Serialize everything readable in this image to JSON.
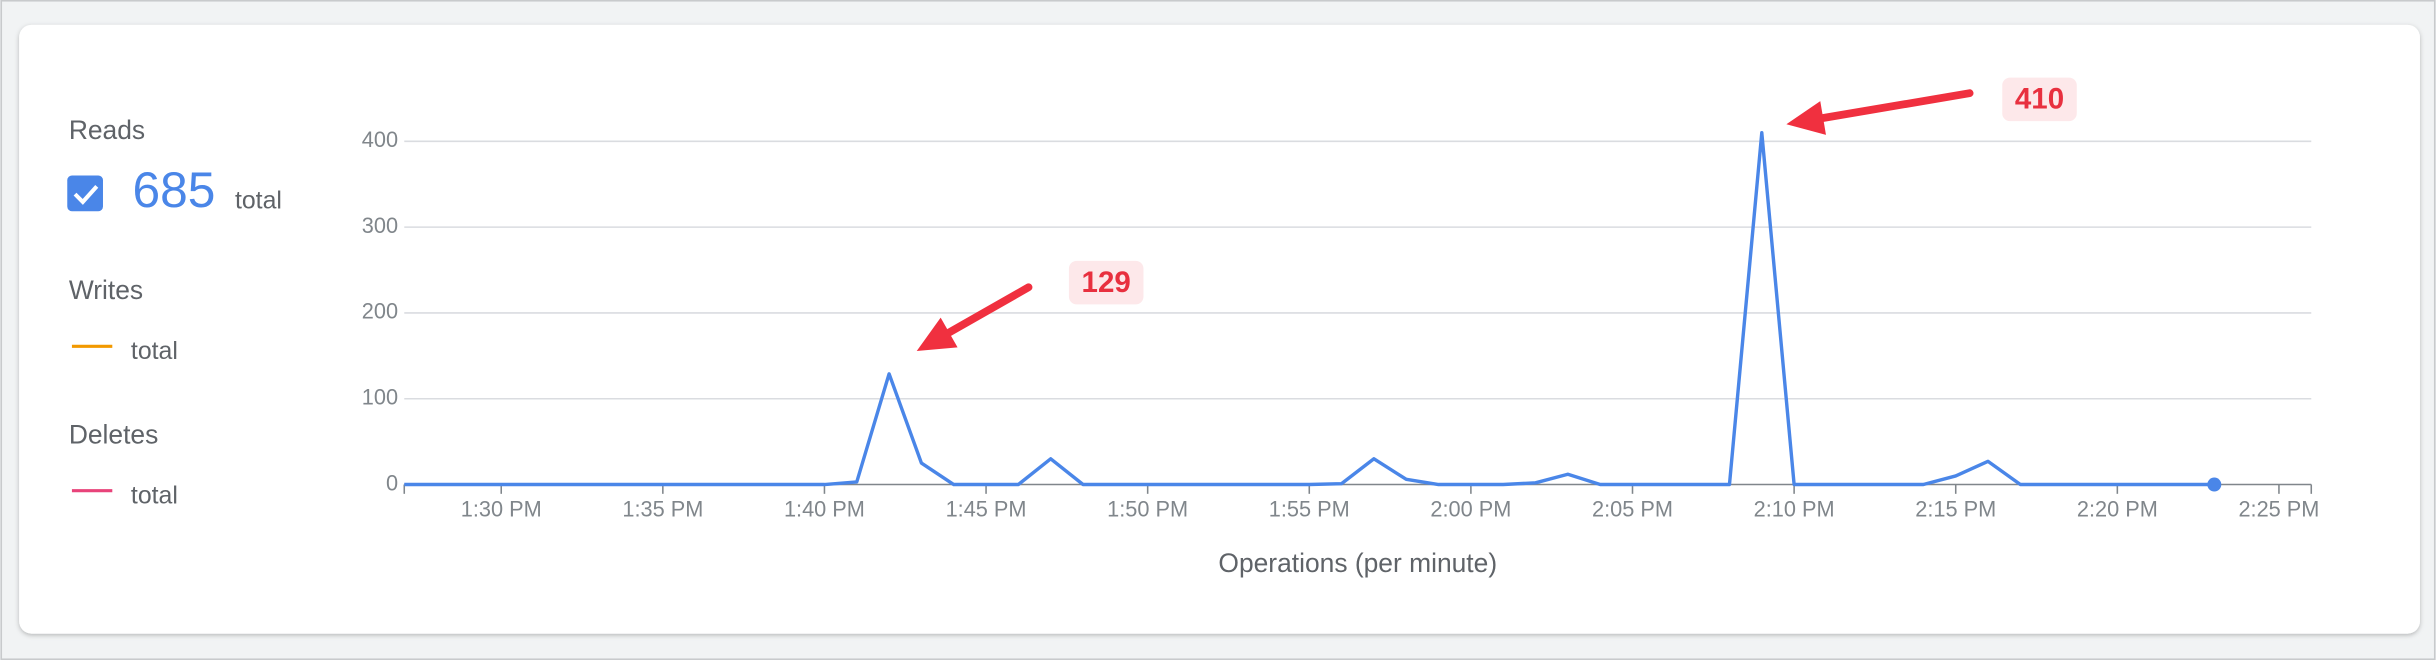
{
  "chart_data": {
    "type": "line",
    "xlabel": "Operations (per minute)",
    "x": [
      "1:27 PM",
      "1:28 PM",
      "1:29 PM",
      "1:30 PM",
      "1:31 PM",
      "1:32 PM",
      "1:33 PM",
      "1:34 PM",
      "1:35 PM",
      "1:36 PM",
      "1:37 PM",
      "1:38 PM",
      "1:39 PM",
      "1:40 PM",
      "1:41 PM",
      "1:42 PM",
      "1:43 PM",
      "1:44 PM",
      "1:45 PM",
      "1:46 PM",
      "1:47 PM",
      "1:48 PM",
      "1:49 PM",
      "1:50 PM",
      "1:51 PM",
      "1:52 PM",
      "1:53 PM",
      "1:54 PM",
      "1:55 PM",
      "1:56 PM",
      "1:57 PM",
      "1:58 PM",
      "1:59 PM",
      "2:00 PM",
      "2:01 PM",
      "2:02 PM",
      "2:03 PM",
      "2:04 PM",
      "2:05 PM",
      "2:06 PM",
      "2:07 PM",
      "2:08 PM",
      "2:09 PM",
      "2:10 PM",
      "2:11 PM",
      "2:12 PM",
      "2:13 PM",
      "2:14 PM",
      "2:15 PM",
      "2:16 PM",
      "2:17 PM",
      "2:18 PM",
      "2:19 PM",
      "2:20 PM",
      "2:21 PM",
      "2:22 PM",
      "2:23 PM"
    ],
    "series": [
      {
        "name": "Reads",
        "color": "#4a86e8",
        "values": [
          0,
          0,
          0,
          0,
          0,
          0,
          0,
          0,
          0,
          0,
          0,
          0,
          0,
          0,
          3,
          129,
          25,
          0,
          0,
          0,
          30,
          0,
          0,
          0,
          0,
          0,
          0,
          0,
          0,
          1,
          30,
          6,
          0,
          0,
          0,
          2,
          12,
          0,
          0,
          0,
          0,
          0,
          410,
          0,
          0,
          0,
          0,
          0,
          10,
          27,
          0,
          0,
          0,
          0,
          0,
          0,
          0
        ]
      }
    ],
    "xlim": [
      "1:27 PM",
      "2:26 PM"
    ],
    "xticks": [
      "1:30 PM",
      "1:35 PM",
      "1:40 PM",
      "1:45 PM",
      "1:50 PM",
      "1:55 PM",
      "2:00 PM",
      "2:05 PM",
      "2:10 PM",
      "2:15 PM",
      "2:20 PM",
      "2:25 PM"
    ],
    "ylim": [
      0,
      400
    ],
    "yticks": [
      0,
      100,
      200,
      300,
      400
    ],
    "grid": true,
    "legend": [
      {
        "name": "Reads",
        "total": 685,
        "unit": "total",
        "color": "#4a86e8"
      },
      {
        "name": "Writes",
        "unit": "total",
        "color": "#f29900"
      },
      {
        "name": "Deletes",
        "unit": "total",
        "color": "#e8437a"
      }
    ],
    "annotations": [
      "129",
      "410"
    ]
  }
}
